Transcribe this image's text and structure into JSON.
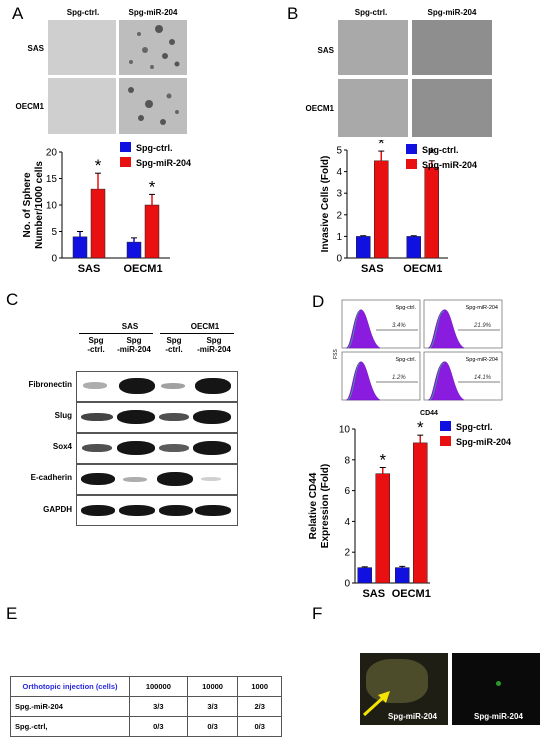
{
  "panels": {
    "a": "A",
    "b": "B",
    "c": "C",
    "d": "D",
    "e": "E",
    "f": "F"
  },
  "panelA": {
    "col_headers": [
      "Spg-ctrl.",
      "Spg-miR-204"
    ],
    "row_labels": [
      "SAS",
      "OECM1"
    ],
    "chart": {
      "type": "bar",
      "categories": [
        "SAS",
        "OECM1"
      ],
      "series": [
        {
          "name": "Spg-ctrl.",
          "values": [
            4,
            3
          ],
          "errors": [
            1,
            0.8
          ],
          "color": "#1010e0"
        },
        {
          "name": "Spg-miR-204",
          "values": [
            13,
            10
          ],
          "errors": [
            3,
            2
          ],
          "color": "#e81010"
        }
      ],
      "ylabel_lines": [
        "No. of Sphere",
        "Number/1000 cells"
      ],
      "ylim": [
        0,
        20
      ],
      "yticks": [
        "0",
        "5",
        "10",
        "15",
        "20"
      ],
      "significance": [
        "*",
        "*"
      ]
    }
  },
  "panelB": {
    "col_headers": [
      "Spg-ctrl.",
      "Spg-miR-204"
    ],
    "row_labels": [
      "SAS",
      "OECM1"
    ],
    "chart": {
      "type": "bar",
      "categories": [
        "SAS",
        "OECM1"
      ],
      "series": [
        {
          "name": "Spg-ctrl.",
          "values": [
            1,
            1
          ],
          "errors": [
            0.03,
            0.03
          ],
          "color": "#1010e0"
        },
        {
          "name": "Spg-miR-204",
          "values": [
            4.5,
            4.2
          ],
          "errors": [
            0.45,
            0.3
          ],
          "color": "#e81010"
        }
      ],
      "ylabel": "Invasive Cells (Fold)",
      "ylim": [
        0,
        5
      ],
      "yticks": [
        "0",
        "1",
        "2",
        "3",
        "4",
        "5"
      ],
      "significance": [
        "*",
        "*"
      ]
    }
  },
  "panelC": {
    "groups": [
      "SAS",
      "OECM1"
    ],
    "lanes": [
      [
        "Spg",
        "-ctrl."
      ],
      [
        "Spg",
        "-miR-204"
      ],
      [
        "Spg",
        "-ctrl."
      ],
      [
        "Spg",
        "-miR-204"
      ]
    ],
    "proteins": [
      "Fibronectin",
      "Slug",
      "Sox4",
      "E-cadherin",
      "GAPDH"
    ]
  },
  "panelD": {
    "flow_labels": [
      "Spg-ctrl.",
      "Spg-miR-204",
      "Spg-ctrl.",
      "Spg-miR-204"
    ],
    "flow_pct": [
      "3.4%",
      "21.9%",
      "1.2%",
      "14.1%"
    ],
    "flow_xlabel": "CD44",
    "flow_ylabel": "FSS",
    "chart": {
      "type": "bar",
      "categories": [
        "SAS",
        "OECM1"
      ],
      "series": [
        {
          "name": "Spg-ctrl.",
          "values": [
            1,
            1
          ],
          "errors": [
            0.05,
            0.08
          ],
          "color": "#1010e0"
        },
        {
          "name": "Spg-miR-204",
          "values": [
            7.1,
            9.1
          ],
          "errors": [
            0.4,
            0.5
          ],
          "color": "#e81010"
        }
      ],
      "ylabel_lines": [
        "Relative CD44",
        "Expression (Fold)"
      ],
      "ylim": [
        0,
        10
      ],
      "yticks": [
        "0",
        "2",
        "4",
        "6",
        "8",
        "10"
      ],
      "significance": [
        "*",
        "*"
      ]
    }
  },
  "panelE": {
    "header": [
      "Orthotopic injection (cells)",
      "100000",
      "10000",
      "1000"
    ],
    "rows": [
      [
        "Spg.-miR-204",
        "3/3",
        "3/3",
        "2/3"
      ],
      [
        "Spg.-ctrl,",
        "0/3",
        "0/3",
        "0/3"
      ]
    ]
  },
  "panelF": {
    "labels": [
      "Spg-miR-204",
      "Spg-miR-204"
    ]
  }
}
